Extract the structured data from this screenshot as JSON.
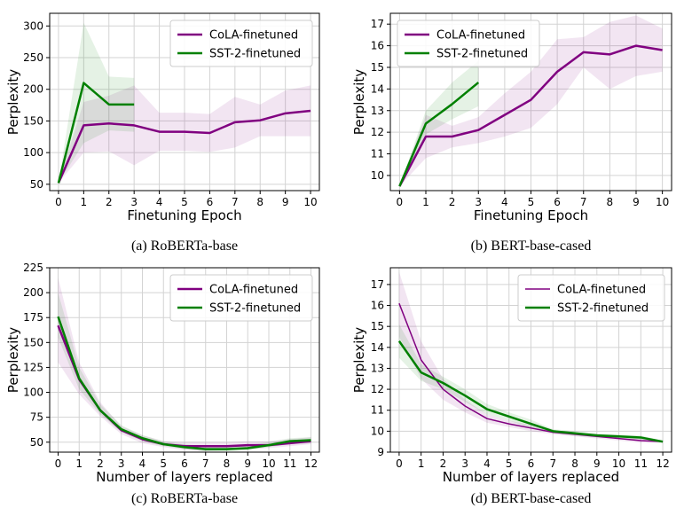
{
  "chart_data": [
    {
      "type": "line",
      "caption": "(a) RoBERTa-base",
      "xlabel": "Finetuning Epoch",
      "ylabel": "Perplexity",
      "xlim": [
        -0.35,
        10.35
      ],
      "ylim": [
        40,
        320
      ],
      "xticks": [
        0,
        1,
        2,
        3,
        4,
        5,
        6,
        7,
        8,
        9,
        10
      ],
      "yticks": [
        50,
        100,
        150,
        200,
        250,
        300
      ],
      "grid": true,
      "legend": "top-right",
      "series": [
        {
          "name": "CoLA-finetuned",
          "color": "#800080",
          "x": [
            0,
            1,
            2,
            3,
            4,
            5,
            6,
            7,
            8,
            9,
            10
          ],
          "y": [
            52,
            143,
            146,
            143,
            133,
            133,
            131,
            148,
            151,
            162,
            166
          ],
          "lower": [
            52,
            100,
            102,
            80,
            103,
            103,
            101,
            108,
            126,
            126,
            126
          ],
          "upper": [
            52,
            180,
            190,
            206,
            163,
            163,
            161,
            188,
            176,
            198,
            206
          ]
        },
        {
          "name": "SST-2-finetuned",
          "color": "#008000",
          "x": [
            0,
            1,
            2,
            3
          ],
          "y": [
            52,
            210,
            176,
            176
          ],
          "lower": [
            52,
            115,
            135,
            133
          ],
          "upper": [
            52,
            305,
            220,
            218
          ]
        }
      ]
    },
    {
      "type": "line",
      "caption": "(b) BERT-base-cased",
      "xlabel": "Finetuning Epoch",
      "ylabel": "Perplexity",
      "xlim": [
        -0.35,
        10.35
      ],
      "ylim": [
        9.3,
        17.5
      ],
      "xticks": [
        0,
        1,
        2,
        3,
        4,
        5,
        6,
        7,
        8,
        9,
        10
      ],
      "yticks": [
        10,
        11,
        12,
        13,
        14,
        15,
        16,
        17
      ],
      "grid": true,
      "legend": "top-left",
      "series": [
        {
          "name": "CoLA-finetuned",
          "color": "#800080",
          "x": [
            0,
            1,
            2,
            3,
            4,
            5,
            6,
            7,
            8,
            9,
            10
          ],
          "y": [
            9.5,
            11.8,
            11.8,
            12.1,
            12.8,
            13.5,
            14.8,
            15.7,
            15.6,
            16.0,
            15.8
          ],
          "lower": [
            9.5,
            10.8,
            11.3,
            11.5,
            11.8,
            12.2,
            13.3,
            15.0,
            14.0,
            14.6,
            14.8
          ],
          "upper": [
            9.5,
            12.8,
            12.3,
            12.7,
            13.8,
            14.8,
            16.3,
            16.4,
            17.1,
            17.4,
            16.8
          ]
        },
        {
          "name": "SST-2-finetuned",
          "color": "#008000",
          "x": [
            0,
            1,
            2,
            3
          ],
          "y": [
            9.5,
            12.4,
            13.3,
            14.3
          ],
          "lower": [
            9.5,
            11.9,
            12.6,
            13.2
          ],
          "upper": [
            9.5,
            13.0,
            14.3,
            15.3
          ]
        }
      ]
    },
    {
      "type": "line",
      "caption": "(c) RoBERTa-base",
      "xlabel": "Number of layers replaced",
      "ylabel": "Perplexity",
      "xlim": [
        -0.4,
        12.4
      ],
      "ylim": [
        40,
        225
      ],
      "xticks": [
        0,
        1,
        2,
        3,
        4,
        5,
        6,
        7,
        8,
        9,
        10,
        11,
        12
      ],
      "yticks": [
        50,
        75,
        100,
        125,
        150,
        175,
        200,
        225
      ],
      "grid": true,
      "legend": "top-right",
      "series": [
        {
          "name": "CoLA-finetuned",
          "color": "#800080",
          "x": [
            0,
            1,
            2,
            3,
            4,
            5,
            6,
            7,
            8,
            9,
            10,
            11,
            12
          ],
          "y": [
            167,
            113,
            82,
            62,
            53,
            48,
            46,
            46,
            46,
            47,
            47,
            49,
            51
          ],
          "lower": [
            130,
            98,
            76,
            58,
            49,
            45,
            42,
            41,
            42,
            43,
            44,
            46,
            48
          ],
          "upper": [
            215,
            130,
            90,
            66,
            57,
            51,
            50,
            50,
            50,
            51,
            51,
            53,
            55
          ]
        },
        {
          "name": "SST-2-finetuned",
          "color": "#008000",
          "x": [
            0,
            1,
            2,
            3,
            4,
            5,
            6,
            7,
            8,
            9,
            10,
            11,
            12
          ],
          "y": [
            176,
            114,
            82,
            63,
            54,
            48,
            45,
            43,
            43,
            44,
            47,
            51,
            52
          ],
          "lower": [
            155,
            103,
            78,
            60,
            51,
            46,
            43,
            41,
            41,
            42,
            45,
            48,
            49
          ],
          "upper": [
            200,
            125,
            88,
            67,
            57,
            51,
            48,
            46,
            46,
            47,
            50,
            54,
            55
          ]
        }
      ]
    },
    {
      "type": "line",
      "caption": "(d) BERT-base-cased",
      "xlabel": "Number of layers replaced",
      "ylabel": "Perplexity",
      "xlim": [
        -0.4,
        12.4
      ],
      "ylim": [
        9.0,
        17.8
      ],
      "xticks": [
        0,
        1,
        2,
        3,
        4,
        5,
        6,
        7,
        8,
        9,
        10,
        11,
        12
      ],
      "yticks": [
        9,
        10,
        11,
        12,
        13,
        14,
        15,
        16,
        17
      ],
      "grid": true,
      "legend": "top-right",
      "series": [
        {
          "name": "CoLA-finetuned",
          "color": "#800080",
          "thin": true,
          "x": [
            0,
            1,
            2,
            3,
            4,
            5,
            6,
            7,
            8,
            9,
            10,
            11,
            12
          ],
          "y": [
            16.1,
            13.4,
            12.0,
            11.2,
            10.6,
            10.35,
            10.15,
            9.95,
            9.85,
            9.75,
            9.65,
            9.55,
            9.5
          ],
          "lower": [
            14.5,
            12.5,
            11.5,
            10.9,
            10.4,
            10.2,
            10.0,
            9.85,
            9.75,
            9.65,
            9.55,
            9.45,
            9.45
          ],
          "upper": [
            17.6,
            14.3,
            12.5,
            11.5,
            10.8,
            10.5,
            10.3,
            10.05,
            9.95,
            9.85,
            9.75,
            9.65,
            9.55
          ]
        },
        {
          "name": "SST-2-finetuned",
          "color": "#008000",
          "x": [
            0,
            1,
            2,
            3,
            4,
            5,
            6,
            7,
            8,
            9,
            10,
            11,
            12
          ],
          "y": [
            14.3,
            12.8,
            12.3,
            11.7,
            11.05,
            10.7,
            10.35,
            10.0,
            9.9,
            9.8,
            9.75,
            9.7,
            9.5
          ],
          "lower": [
            13.5,
            12.4,
            12.0,
            11.4,
            10.8,
            10.5,
            10.15,
            9.9,
            9.8,
            9.7,
            9.65,
            9.6,
            9.45
          ],
          "upper": [
            15.1,
            13.2,
            12.6,
            12.0,
            11.3,
            10.9,
            10.55,
            10.1,
            10.0,
            9.9,
            9.85,
            9.8,
            9.55
          ]
        }
      ]
    }
  ]
}
